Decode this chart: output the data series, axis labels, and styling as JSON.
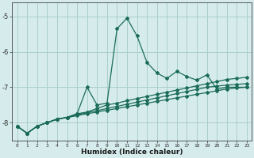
{
  "xlabel": "Humidex (Indice chaleur)",
  "bg_color": "#d6ecec",
  "grid_color": "#aacece",
  "line_color": "#1a6b5a",
  "xlim": [
    -0.5,
    23.5
  ],
  "ylim": [
    -8.5,
    -4.6
  ],
  "x_ticks": [
    0,
    1,
    2,
    3,
    4,
    5,
    6,
    7,
    8,
    9,
    10,
    11,
    12,
    13,
    14,
    15,
    16,
    17,
    18,
    19,
    20,
    21,
    22,
    23
  ],
  "y_ticks": [
    -8,
    -7,
    -6,
    -5
  ],
  "y_main": [
    -8.1,
    -8.3,
    -8.1,
    -8.0,
    -7.9,
    -7.85,
    -7.75,
    -7.0,
    -7.5,
    -7.45,
    -5.35,
    -5.05,
    -5.55,
    -6.3,
    -6.6,
    -6.75,
    -6.55,
    -6.7,
    -6.8,
    -6.65,
    -7.05,
    -7.0,
    -7.0,
    -7.0
  ],
  "y_line2": [
    -8.1,
    -8.3,
    -8.1,
    -8.0,
    -7.9,
    -7.85,
    -7.75,
    -7.7,
    -7.6,
    -7.5,
    -7.45,
    -7.38,
    -7.32,
    -7.26,
    -7.2,
    -7.14,
    -7.08,
    -7.02,
    -6.96,
    -6.9,
    -6.84,
    -6.78,
    -6.75,
    -6.72
  ],
  "y_line3": [
    -8.1,
    -8.3,
    -8.1,
    -8.0,
    -7.9,
    -7.85,
    -7.78,
    -7.72,
    -7.66,
    -7.6,
    -7.54,
    -7.48,
    -7.42,
    -7.36,
    -7.3,
    -7.24,
    -7.18,
    -7.12,
    -7.06,
    -7.0,
    -6.97,
    -6.94,
    -6.92,
    -6.9
  ],
  "y_line4": [
    -8.1,
    -8.3,
    -8.1,
    -8.0,
    -7.9,
    -7.86,
    -7.8,
    -7.75,
    -7.7,
    -7.65,
    -7.6,
    -7.55,
    -7.5,
    -7.45,
    -7.4,
    -7.35,
    -7.3,
    -7.25,
    -7.2,
    -7.15,
    -7.1,
    -7.05,
    -7.02,
    -7.0
  ]
}
